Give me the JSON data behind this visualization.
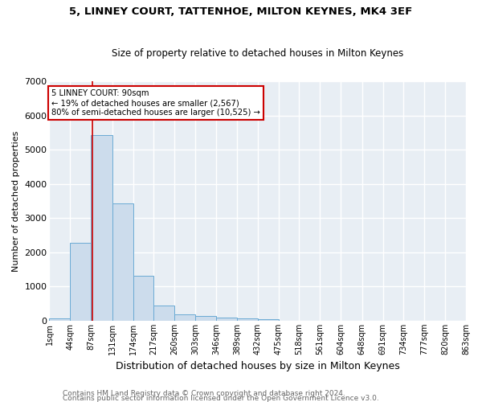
{
  "title1": "5, LINNEY COURT, TATTENHOE, MILTON KEYNES, MK4 3EF",
  "title2": "Size of property relative to detached houses in Milton Keynes",
  "xlabel": "Distribution of detached houses by size in Milton Keynes",
  "ylabel": "Number of detached properties",
  "footnote1": "Contains HM Land Registry data © Crown copyright and database right 2024.",
  "footnote2": "Contains public sector information licensed under the Open Government Licence v3.0.",
  "annotation_line1": "5 LINNEY COURT: 90sqm",
  "annotation_line2": "← 19% of detached houses are smaller (2,567)",
  "annotation_line3": "80% of semi-detached houses are larger (10,525) →",
  "bar_color": "#ccdcec",
  "bar_edge_color": "#6aaad4",
  "red_line_x": 90,
  "bin_edges": [
    1,
    44,
    87,
    131,
    174,
    217,
    260,
    303,
    346,
    389,
    432,
    475,
    518,
    561,
    604,
    648,
    691,
    734,
    777,
    820,
    863
  ],
  "bar_heights": [
    75,
    2280,
    5430,
    3430,
    1310,
    450,
    175,
    150,
    100,
    75,
    50,
    0,
    0,
    0,
    0,
    0,
    0,
    0,
    0,
    0
  ],
  "xlabels": [
    "1sqm",
    "44sqm",
    "87sqm",
    "131sqm",
    "174sqm",
    "217sqm",
    "260sqm",
    "303sqm",
    "346sqm",
    "389sqm",
    "432sqm",
    "475sqm",
    "518sqm",
    "561sqm",
    "604sqm",
    "648sqm",
    "691sqm",
    "734sqm",
    "777sqm",
    "820sqm",
    "863sqm"
  ],
  "ylim": [
    0,
    7000
  ],
  "yticks": [
    0,
    1000,
    2000,
    3000,
    4000,
    5000,
    6000,
    7000
  ],
  "annotation_box_color": "white",
  "annotation_box_edge_color": "#cc0000",
  "red_line_color": "#cc0000",
  "background_color": "#e8eef4",
  "grid_color": "white",
  "title1_fontsize": 9.5,
  "title2_fontsize": 8.5,
  "xlabel_fontsize": 9,
  "ylabel_fontsize": 8,
  "tick_fontsize": 7,
  "footnote_fontsize": 6.5
}
